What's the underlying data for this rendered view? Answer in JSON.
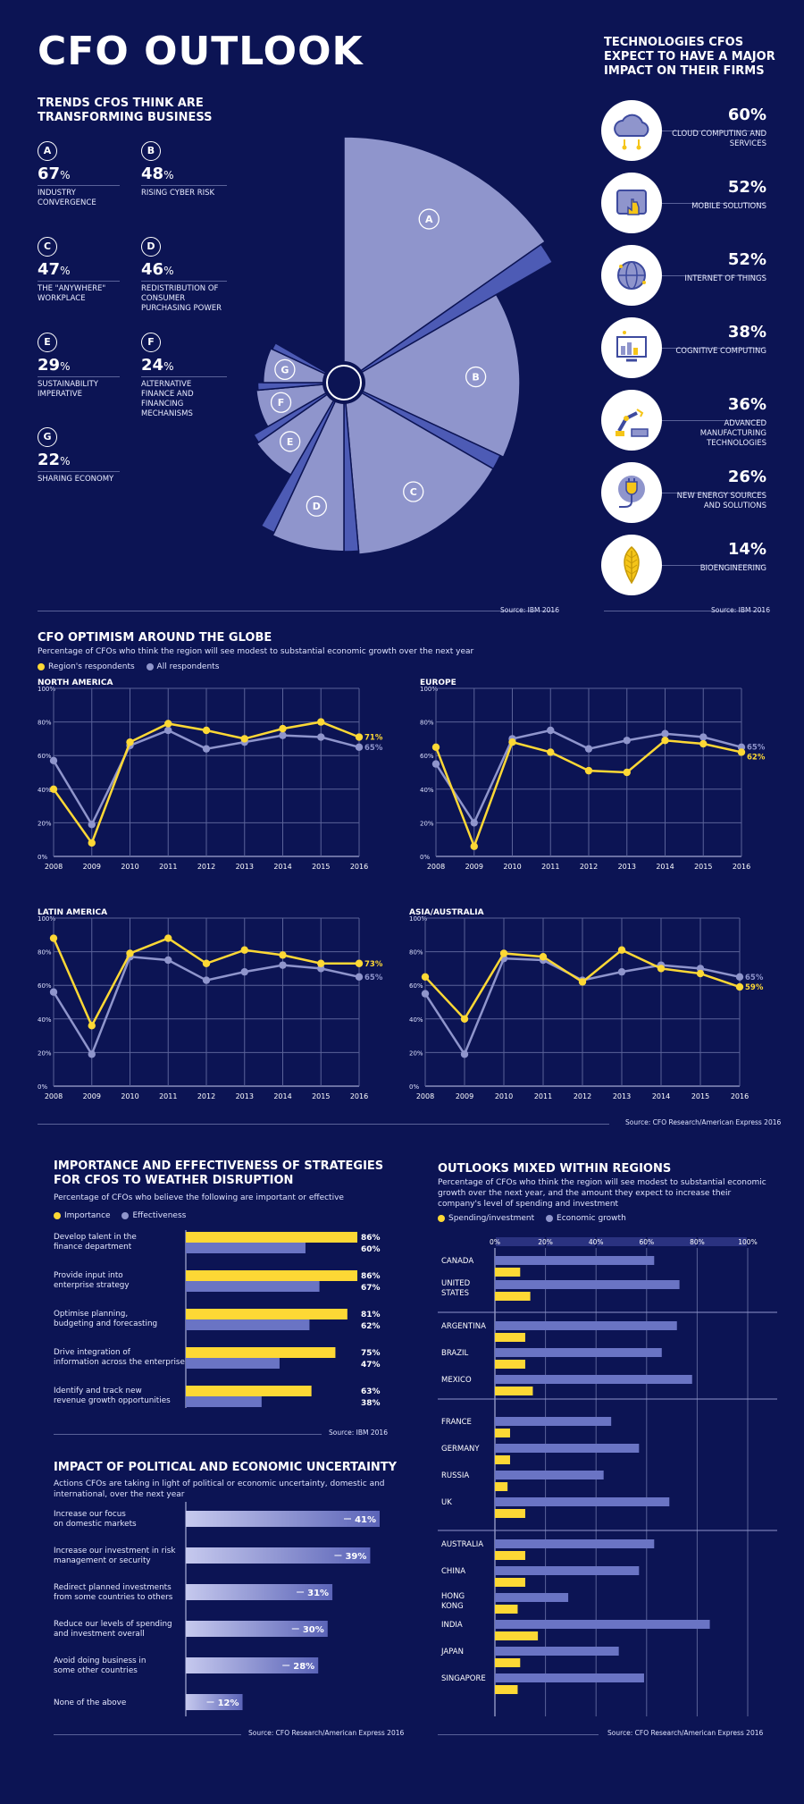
{
  "title": "CFO OUTLOOK",
  "trends": {
    "heading": "TRENDS CFOs THINK ARE TRANSFORMING BUSINESS",
    "items": [
      {
        "letter": "A",
        "pct": "67",
        "unit": "%",
        "label": "INDUSTRY CONVERGENCE"
      },
      {
        "letter": "B",
        "pct": "48",
        "unit": "%",
        "label": "RISING CYBER RISK"
      },
      {
        "letter": "C",
        "pct": "47",
        "unit": "%",
        "label": "THE \"ANYWHERE\" WORKPLACE"
      },
      {
        "letter": "D",
        "pct": "46",
        "unit": "%",
        "label": "REDISTRIBUTION OF CONSUMER PURCHASING POWER"
      },
      {
        "letter": "E",
        "pct": "29",
        "unit": "%",
        "label": "SUSTAINABILITY IMPERATIVE"
      },
      {
        "letter": "F",
        "pct": "24",
        "unit": "%",
        "label": "ALTERNATIVE FINANCE AND FINANCING MECHANISMS"
      },
      {
        "letter": "G",
        "pct": "22",
        "unit": "%",
        "label": "SHARING ECONOMY"
      }
    ],
    "source": "Source: IBM 2016"
  },
  "tech": {
    "heading": "TECHNOLOGIES CFOs EXPECT TO HAVE A MAJOR IMPACT ON THEIR FIRMS",
    "items": [
      {
        "pct": "60%",
        "label": "CLOUD COMPUTING AND SERVICES",
        "icon": "cloud-icon"
      },
      {
        "pct": "52%",
        "label": "MOBILE SOLUTIONS",
        "icon": "mobile-icon"
      },
      {
        "pct": "52%",
        "label": "INTERNET OF THINGS",
        "icon": "globe-icon"
      },
      {
        "pct": "38%",
        "label": "COGNITIVE COMPUTING",
        "icon": "computer-icon"
      },
      {
        "pct": "36%",
        "label": "ADVANCED MANUFACTURING TECHNOLOGIES",
        "icon": "robot-arm-icon"
      },
      {
        "pct": "26%",
        "label": "NEW ENERGY SOURCES AND SOLUTIONS",
        "icon": "plug-icon"
      },
      {
        "pct": "14%",
        "label": "BIOENGINEERING",
        "icon": "leaf-icon"
      }
    ],
    "source": "Source: IBM 2016"
  },
  "optimism": {
    "heading": "CFO OPTIMISM AROUND THE GLOBE",
    "subtitle": "Percentage of CFOs who think the region will see modest to substantial economic growth over the next year",
    "legend": [
      "Region's respondents",
      "All respondents"
    ],
    "source": "Source: CFO Research/American Express 2016",
    "colors": {
      "region": "#fdd835",
      "all": "#8f95cc"
    }
  },
  "strategies": {
    "heading": "IMPORTANCE AND EFFECTIVENESS OF STRATEGIES FOR CFOs TO WEATHER DISRUPTION",
    "subtitle": "Percentage of CFOs who believe the following are important or effective",
    "legend": [
      "Importance",
      "Effectiveness"
    ],
    "source": "Source: IBM 2016"
  },
  "impact": {
    "heading": "IMPACT OF POLITICAL AND ECONOMIC UNCERTAINTY",
    "subtitle": "Actions CFOs are taking in light of political or economic uncertainty, domestic and international, over the next year",
    "source": "Source: CFO Research/American Express 2016"
  },
  "outlooks": {
    "heading": "OUTLOOKS MIXED WITHIN REGIONS",
    "subtitle": "Percentage of CFOs who think the region will see modest to substantial economic growth over the next year, and the amount they expect to increase their company's level of spending and investment",
    "legend": [
      "Spending/investment",
      "Economic growth"
    ],
    "source": "Source: CFO Research/American Express 2016"
  },
  "chart_data": [
    {
      "type": "pie",
      "categories": [
        "A",
        "B",
        "C",
        "D",
        "E",
        "F",
        "G"
      ],
      "values": [
        67,
        48,
        47,
        46,
        29,
        24,
        22
      ]
    },
    {
      "type": "line",
      "title": "NORTH AMERICA",
      "x": [
        2008,
        2009,
        2010,
        2011,
        2012,
        2013,
        2014,
        2015,
        2016
      ],
      "ylim": [
        0,
        100
      ],
      "yticks": [
        "0%",
        "20%",
        "40%",
        "60%",
        "80%",
        "100%"
      ],
      "series": [
        {
          "name": "Region's respondents",
          "values": [
            40,
            8,
            68,
            79,
            75,
            70,
            76,
            80,
            71
          ],
          "end_label": "71%"
        },
        {
          "name": "All respondents",
          "values": [
            57,
            19,
            66,
            75,
            64,
            68,
            72,
            71,
            65
          ],
          "end_label": "65%"
        }
      ]
    },
    {
      "type": "line",
      "title": "EUROPE",
      "x": [
        2008,
        2009,
        2010,
        2011,
        2012,
        2013,
        2014,
        2015,
        2016
      ],
      "ylim": [
        0,
        100
      ],
      "yticks": [
        "0%",
        "20%",
        "40%",
        "60%",
        "80%",
        "100%"
      ],
      "series": [
        {
          "name": "Region's respondents",
          "values": [
            65,
            6,
            68,
            62,
            51,
            50,
            69,
            67,
            62
          ],
          "end_label": "62%"
        },
        {
          "name": "All respondents",
          "values": [
            55,
            20,
            70,
            75,
            64,
            69,
            73,
            71,
            65
          ],
          "end_label": "65%"
        }
      ]
    },
    {
      "type": "line",
      "title": "LATIN AMERICA",
      "x": [
        2008,
        2009,
        2010,
        2011,
        2012,
        2013,
        2014,
        2015,
        2016
      ],
      "ylim": [
        0,
        100
      ],
      "yticks": [
        "0%",
        "20%",
        "40%",
        "60%",
        "80%",
        "100%"
      ],
      "series": [
        {
          "name": "Region's respondents",
          "values": [
            88,
            36,
            79,
            88,
            73,
            81,
            78,
            73,
            73
          ],
          "end_label": "73%"
        },
        {
          "name": "All respondents",
          "values": [
            56,
            19,
            77,
            75,
            63,
            68,
            72,
            70,
            65
          ],
          "end_label": "65%"
        }
      ]
    },
    {
      "type": "line",
      "title": "ASIA/AUSTRALIA",
      "x": [
        2008,
        2009,
        2010,
        2011,
        2012,
        2013,
        2014,
        2015,
        2016
      ],
      "ylim": [
        0,
        100
      ],
      "yticks": [
        "0%",
        "20%",
        "40%",
        "60%",
        "80%",
        "100%"
      ],
      "series": [
        {
          "name": "Region's respondents",
          "values": [
            65,
            40,
            79,
            77,
            62,
            81,
            70,
            67,
            59
          ],
          "end_label": "59%"
        },
        {
          "name": "All respondents",
          "values": [
            55,
            19,
            76,
            75,
            63,
            68,
            72,
            70,
            65
          ],
          "end_label": "65%"
        }
      ]
    },
    {
      "type": "bar",
      "orientation": "horizontal",
      "categories": [
        "Develop talent in the finance department",
        "Provide input into enterprise strategy",
        "Optimise planning, budgeting and forecasting",
        "Drive integration of information across the enterprise",
        "Identify and track new revenue growth opportunities"
      ],
      "series": [
        {
          "name": "Importance",
          "values": [
            86,
            86,
            81,
            75,
            63
          ],
          "labels": [
            "86%",
            "86%",
            "81%",
            "75%",
            "63%"
          ]
        },
        {
          "name": "Effectiveness",
          "values": [
            60,
            67,
            62,
            47,
            38
          ],
          "labels": [
            "60%",
            "67%",
            "62%",
            "47%",
            "38%"
          ]
        }
      ]
    },
    {
      "type": "bar",
      "orientation": "horizontal",
      "categories": [
        "Increase our focus on domestic markets",
        "Increase our investment in risk management or security",
        "Redirect planned investments from some countries to others",
        "Reduce our levels of spending and investment overall",
        "Avoid doing business in some other countries",
        "None of the above"
      ],
      "values": [
        41,
        39,
        31,
        30,
        28,
        12
      ],
      "labels": [
        "41%",
        "39%",
        "31%",
        "30%",
        "28%",
        "12%"
      ]
    },
    {
      "type": "bar",
      "orientation": "horizontal",
      "xticks": [
        "0%",
        "20%",
        "40%",
        "60%",
        "80%",
        "100%"
      ],
      "categories": [
        "CANADA",
        "UNITED STATES",
        "ARGENTINA",
        "BRAZIL",
        "MEXICO",
        "FRANCE",
        "GERMANY",
        "RUSSIA",
        "UK",
        "AUSTRALIA",
        "CHINA",
        "HONG KONG",
        "INDIA",
        "JAPAN",
        "SINGAPORE"
      ],
      "series": [
        {
          "name": "Spending/investment",
          "values": [
            10,
            14,
            12,
            12,
            15,
            6,
            6,
            5,
            12,
            12,
            12,
            9,
            17,
            10,
            9
          ]
        },
        {
          "name": "Economic growth",
          "values": [
            63,
            73,
            72,
            66,
            78,
            46,
            57,
            43,
            69,
            63,
            57,
            29,
            85,
            49,
            59
          ]
        }
      ]
    }
  ]
}
